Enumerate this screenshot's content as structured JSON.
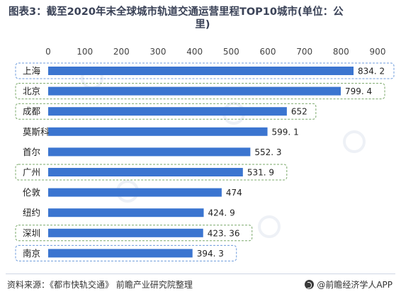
{
  "header": {
    "title_line1": "图表3：截至2020年末全球城市轨道交通运营里程TOP10城市(单位：公",
    "title_line2": "里)"
  },
  "footer": {
    "source": "资料来源：《都市快轨交通》 前瞻产业研究院整理",
    "brand": "@前瞻经济学人APP"
  },
  "colors": {
    "bar": "#3b75d0",
    "box_blue": "#6c9bdc",
    "box_green": "#7aa86a",
    "axis_text": "#444444",
    "gridline": "#dddddd"
  },
  "chart_data": {
    "type": "bar",
    "orientation": "horizontal",
    "title": "图表3：截至2020年末全球城市轨道交通运营里程TOP10城市(单位：公里)",
    "xlim": [
      0,
      900
    ],
    "xticks": [
      0,
      100,
      200,
      300,
      400,
      500,
      600,
      700,
      800,
      900
    ],
    "xtick_labels": [
      "0",
      "100",
      "200",
      "300",
      "400",
      "500",
      "600",
      "700",
      "800",
      "900"
    ],
    "xaxis_position": "top",
    "categories": [
      "上海",
      "北京",
      "成都",
      "莫斯科",
      "首尔",
      "广州",
      "伦敦",
      "纽约",
      "深圳",
      "南京"
    ],
    "values": [
      834.2,
      799.4,
      652,
      599.1,
      552.3,
      531.9,
      474,
      424.9,
      423.36,
      394.3
    ],
    "value_labels": [
      "834. 2",
      "799. 4",
      "652",
      "599. 1",
      "552. 3",
      "531. 9",
      "474",
      "424. 9",
      "423. 36",
      "394. 3"
    ],
    "highlight": [
      "blue",
      "green",
      "green",
      "none",
      "none",
      "green",
      "none",
      "none",
      "green",
      "blue"
    ],
    "grid": false
  }
}
